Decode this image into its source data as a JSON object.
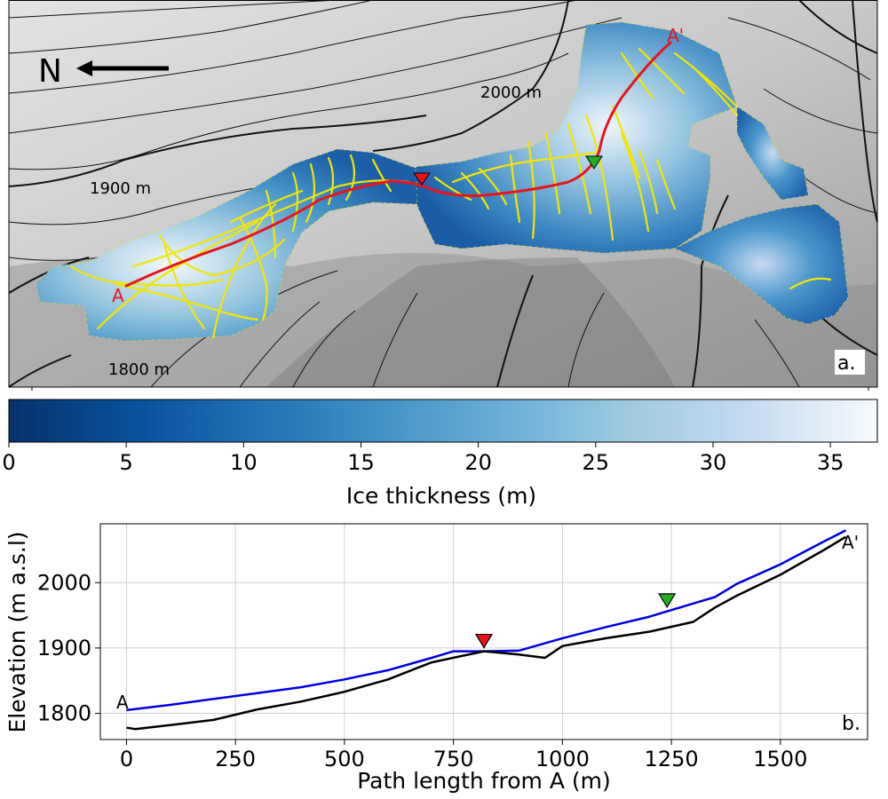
{
  "map": {
    "north_label": "N",
    "panel_label": "a.",
    "contours": [
      {
        "label": "2000 m",
        "elevation": 2000
      },
      {
        "label": "1900 m",
        "elevation": 1900
      },
      {
        "label": "1800 m",
        "elevation": 1800
      }
    ],
    "profile_start_label": "A",
    "profile_end_label": "A'",
    "colors": {
      "profile_line": "#e8141c",
      "gpr_tracks": "#f2e600",
      "ice_edge_points": "#e6e600",
      "contour": "#111111"
    }
  },
  "colorbar": {
    "label": "Ice thickness (m)",
    "range": [
      0,
      37
    ],
    "ticks": [
      "0",
      "5",
      "10",
      "15",
      "20",
      "25",
      "30",
      "35"
    ],
    "colormap": [
      "#08306b",
      "#08519c",
      "#2171b5",
      "#4292c6",
      "#6baed6",
      "#9ecae1",
      "#c6dbef",
      "#f7fbff"
    ]
  },
  "chart_data": {
    "type": "line",
    "xlabel": "Path length from A (m)",
    "ylabel": "Elevation (m a.s.l)",
    "panel_label": "b.",
    "xlim": [
      -60,
      1700
    ],
    "ylim": [
      1760,
      2090
    ],
    "xticks": [
      "0",
      "250",
      "500",
      "750",
      "1000",
      "1250",
      "1500"
    ],
    "yticks": [
      "1800",
      "1900",
      "2000"
    ],
    "grid": true,
    "start_label": "A",
    "end_label": "A'",
    "series": [
      {
        "color": "#0000e0",
        "x": [
          0,
          100,
          200,
          300,
          400,
          500,
          600,
          700,
          750,
          820,
          900,
          1000,
          1100,
          1200,
          1300,
          1350,
          1400,
          1500,
          1600,
          1650
        ],
        "y": [
          1805,
          1813,
          1822,
          1831,
          1840,
          1852,
          1866,
          1885,
          1895,
          1895,
          1896,
          1915,
          1932,
          1948,
          1968,
          1978,
          1998,
          2028,
          2063,
          2080
        ]
      },
      {
        "color": "#000000",
        "x": [
          0,
          20,
          100,
          200,
          250,
          300,
          400,
          500,
          600,
          700,
          820,
          900,
          960,
          1000,
          1100,
          1200,
          1300,
          1350,
          1400,
          1500,
          1600,
          1650
        ],
        "y": [
          1778,
          1776,
          1782,
          1790,
          1798,
          1806,
          1818,
          1833,
          1852,
          1878,
          1895,
          1890,
          1885,
          1903,
          1915,
          1925,
          1940,
          1962,
          1980,
          2012,
          2050,
          2070
        ]
      }
    ],
    "markers": [
      {
        "x": 820,
        "y": 1910,
        "color": "#e8141c"
      },
      {
        "x": 1240,
        "y": 1972,
        "color": "#22b022"
      }
    ]
  }
}
